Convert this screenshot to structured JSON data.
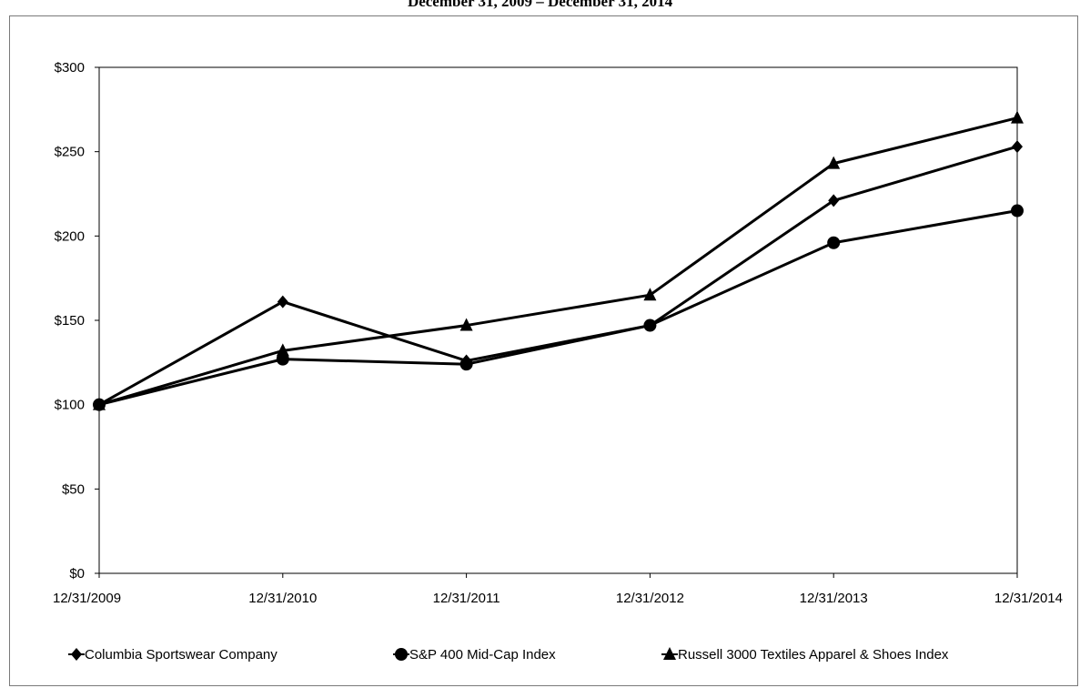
{
  "chart_data": {
    "type": "line",
    "title": "December 31, 2009 – December 31, 2014",
    "xlabel": "",
    "ylabel": "",
    "categories": [
      "12/31/2009",
      "12/31/2010",
      "12/31/2011",
      "12/31/2012",
      "12/31/2013",
      "12/31/2014"
    ],
    "y_ticks": [
      "$0",
      "$50",
      "$100",
      "$150",
      "$200",
      "$250",
      "$300"
    ],
    "ylim": [
      0,
      300
    ],
    "grid": false,
    "legend_position": "bottom",
    "series": [
      {
        "name": "Columbia Sportswear Company",
        "marker": "diamond",
        "color": "#000000",
        "values": [
          100,
          161,
          126,
          147,
          221,
          253
        ]
      },
      {
        "name": "S&P 400 Mid-Cap Index",
        "marker": "circle",
        "color": "#000000",
        "values": [
          100,
          127,
          124,
          147,
          196,
          215
        ]
      },
      {
        "name": "Russell 3000 Textiles Apparel & Shoes Index",
        "marker": "triangle",
        "color": "#000000",
        "values": [
          100,
          132,
          147,
          165,
          243,
          270
        ]
      }
    ]
  }
}
